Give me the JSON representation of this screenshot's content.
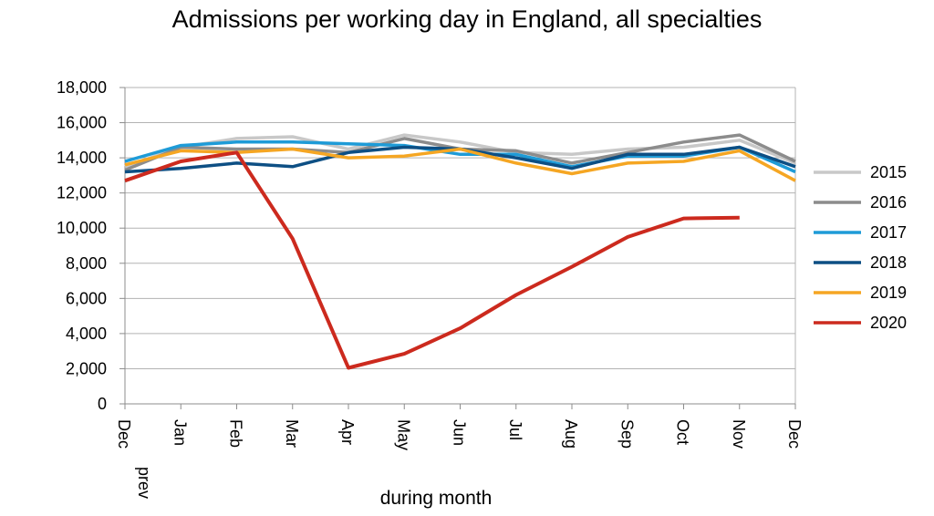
{
  "chart_data": {
    "type": "line",
    "title": "Admissions per working day in England, all specialties",
    "xlabel": "during month",
    "ylabel": "",
    "ylim": [
      0,
      18000
    ],
    "yticks": [
      0,
      2000,
      4000,
      6000,
      8000,
      10000,
      12000,
      14000,
      16000,
      18000
    ],
    "ytick_labels": [
      "0",
      "2,000",
      "4,000",
      "6,000",
      "8,000",
      "10,000",
      "12,000",
      "14,000",
      "16,000",
      "18,000"
    ],
    "categories": [
      "Dec prev",
      "Jan",
      "Feb",
      "Mar",
      "Apr",
      "May",
      "Jun",
      "Jul",
      "Aug",
      "Sep",
      "Oct",
      "Nov",
      "Dec"
    ],
    "grid": true,
    "legend_position": "right",
    "series": [
      {
        "name": "2015",
        "color": "#c8c8c8",
        "values": [
          13500,
          14600,
          15100,
          15200,
          14500,
          15300,
          14900,
          14300,
          14200,
          14500,
          14600,
          15000,
          13700
        ]
      },
      {
        "name": "2016",
        "color": "#8c8c8c",
        "values": [
          13300,
          14600,
          14500,
          14500,
          14300,
          15100,
          14500,
          14400,
          13700,
          14300,
          14900,
          15300,
          13800
        ]
      },
      {
        "name": "2017",
        "color": "#1e9bd7",
        "values": [
          13800,
          14700,
          14900,
          14900,
          14800,
          14700,
          14200,
          14200,
          13500,
          14100,
          14100,
          14600,
          13200
        ]
      },
      {
        "name": "2018",
        "color": "#0d4f84",
        "values": [
          13200,
          13400,
          13700,
          13500,
          14300,
          14600,
          14500,
          14000,
          13400,
          14200,
          14200,
          14600,
          13500
        ]
      },
      {
        "name": "2019",
        "color": "#f5a623",
        "values": [
          13600,
          14400,
          14300,
          14500,
          14000,
          14100,
          14500,
          13700,
          13100,
          13700,
          13800,
          14400,
          12700
        ]
      },
      {
        "name": "2020",
        "color": "#cc2a1e",
        "values": [
          12700,
          13800,
          14300,
          9400,
          2050,
          2850,
          4300,
          6200,
          7800,
          9500,
          10550,
          10600,
          null
        ]
      }
    ]
  }
}
